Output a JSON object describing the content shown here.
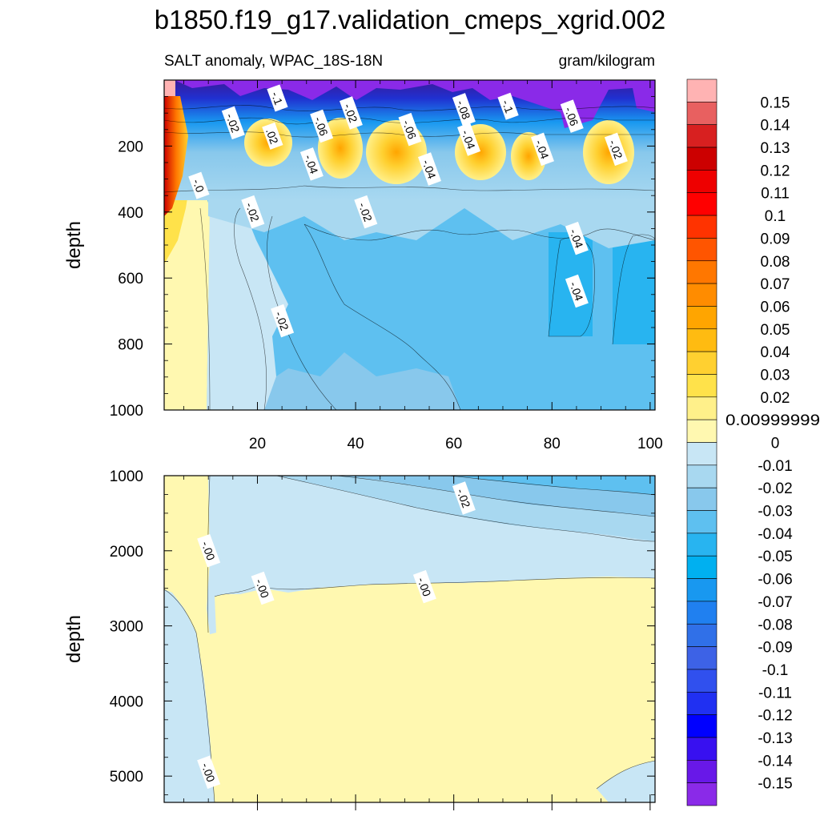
{
  "title": "b1850.f19_g17.validation_cmeps_xgrid.002",
  "chart_data": {
    "type": "contour",
    "variable": "SALT anomaly, WPAC_18S-18N",
    "units": "gram/kilogram",
    "x_ticks": [
      "20",
      "40",
      "60",
      "80",
      "100"
    ],
    "x_tick_values": [
      20,
      40,
      60,
      80,
      100
    ],
    "xlim": [
      1,
      101
    ],
    "top_panel": {
      "ylabel": "depth",
      "ylim": [
        0,
        1000
      ],
      "y_ticks": [
        "200",
        "400",
        "600",
        "800",
        "1000"
      ],
      "y_tick_values": [
        200,
        400,
        600,
        800,
        1000
      ],
      "contour_labels": [
        {
          "text": "-.1",
          "x": 24,
          "y": 55
        },
        {
          "text": "-.02",
          "x": 15,
          "y": 130
        },
        {
          "text": "-.06",
          "x": 33,
          "y": 140
        },
        {
          "text": "-.02",
          "x": 39,
          "y": 100
        },
        {
          "text": "-.08",
          "x": 62,
          "y": 90
        },
        {
          "text": "-.1",
          "x": 71,
          "y": 80
        },
        {
          "text": "-.06",
          "x": 84,
          "y": 110
        },
        {
          "text": ".02",
          "x": 23,
          "y": 170
        },
        {
          "text": "-.06",
          "x": 51,
          "y": 150
        },
        {
          "text": "-.04",
          "x": 63,
          "y": 180
        },
        {
          "text": "-.04",
          "x": 78,
          "y": 210
        },
        {
          "text": "-.02",
          "x": 93,
          "y": 210
        },
        {
          "text": "-.04",
          "x": 31,
          "y": 255
        },
        {
          "text": "-.04",
          "x": 55,
          "y": 270
        },
        {
          "text": "-.0",
          "x": 8,
          "y": 320
        },
        {
          "text": "-.02",
          "x": 19,
          "y": 400
        },
        {
          "text": "-.02",
          "x": 42,
          "y": 400
        },
        {
          "text": "-.04",
          "x": 85,
          "y": 480
        },
        {
          "text": "-.04",
          "x": 85,
          "y": 640
        },
        {
          "text": "-.02",
          "x": 25,
          "y": 730
        }
      ]
    },
    "bottom_panel": {
      "ylabel": "depth",
      "ylim": [
        1000,
        5350
      ],
      "y_ticks": [
        "1000",
        "2000",
        "3000",
        "4000",
        "5000"
      ],
      "y_tick_values": [
        1000,
        2000,
        3000,
        4000,
        5000
      ],
      "contour_labels": [
        {
          "text": "-.02",
          "x": 62,
          "y": 1300
        },
        {
          "text": "-.00",
          "x": 10,
          "y": 2000
        },
        {
          "text": "-.00",
          "x": 21,
          "y": 2500
        },
        {
          "text": "-.00",
          "x": 54,
          "y": 2480
        },
        {
          "text": "-.00",
          "x": 10,
          "y": 4950
        }
      ]
    },
    "colorbar": {
      "labels": [
        "0.15",
        "0.14",
        "0.13",
        "0.12",
        "0.11",
        "0.1",
        "0.09",
        "0.08",
        "0.07",
        "0.06",
        "0.05",
        "0.04",
        "0.03",
        "0.02",
        "0.00999999",
        "0",
        "-0.01",
        "-0.02",
        "-0.03",
        "-0.04",
        "-0.05",
        "-0.06",
        "-0.07",
        "-0.08",
        "-0.09",
        "-0.1",
        "-0.11",
        "-0.12",
        "-0.13",
        "-0.14",
        "-0.15"
      ],
      "colors": [
        "#ffb3b3",
        "#e86060",
        "#d82020",
        "#cc0000",
        "#ee0000",
        "#ff0000",
        "#ff3300",
        "#ff5500",
        "#ff7700",
        "#ff8c00",
        "#ffa500",
        "#ffbb11",
        "#ffd030",
        "#ffe24a",
        "#fff08a",
        "#fff8b0",
        "#c8e6f5",
        "#a8d8f0",
        "#88c8ec",
        "#5ec0f0",
        "#28b4f0",
        "#00b0f0",
        "#1898f0",
        "#2080f0",
        "#3070e8",
        "#3d62e6",
        "#3050ee",
        "#2030f2",
        "#0000ff",
        "#3810f0",
        "#6818e8",
        "#8a2ae8"
      ]
    }
  }
}
